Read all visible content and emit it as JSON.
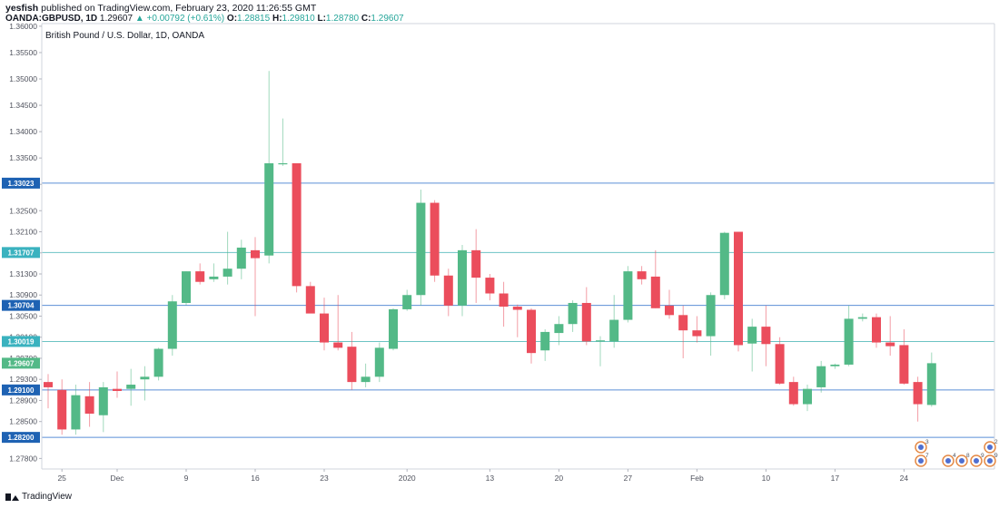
{
  "header": {
    "user": "yesfish",
    "published_text": "published on TradingView.com, February 23, 2020 11:26:55 GMT",
    "symbol": "OANDA:GBPUSD, 1D",
    "price": "1.29607",
    "change": "▲ +0.00792 (+0.61%)",
    "o_label": "O:",
    "o_value": "1.28815",
    "h_label": "H:",
    "h_value": "1.29810",
    "l_label": "L:",
    "l_value": "1.28780",
    "c_label": "C:",
    "c_value": "1.29607"
  },
  "footer": {
    "brand": "TradingView"
  },
  "colors": {
    "up": "#53b987",
    "down": "#eb4d5c",
    "hline_blue": "#5b8fd6",
    "hline_teal": "#6cc3c4",
    "tag_blue": "#2962ff",
    "tag_dark": "#1e62b3",
    "tag_teal": "#3ab2bf"
  },
  "chart_data": {
    "type": "candlestick",
    "title": "British Pound / U.S. Dollar, 1D, OANDA",
    "y_range": [
      1.276,
      1.3605
    ],
    "y_ticks": [
      "1.36000",
      "1.35500",
      "1.35000",
      "1.34500",
      "1.34000",
      "1.33500",
      "1.33000",
      "1.32500",
      "1.32100",
      "1.31700",
      "1.31300",
      "1.30900",
      "1.30500",
      "1.30100",
      "1.29700",
      "1.29300",
      "1.28900",
      "1.28500",
      "1.27800"
    ],
    "x_labels": [
      {
        "i": 1,
        "label": "25"
      },
      {
        "i": 5,
        "label": "Dec"
      },
      {
        "i": 10,
        "label": "9"
      },
      {
        "i": 15,
        "label": "16"
      },
      {
        "i": 20,
        "label": "23"
      },
      {
        "i": 26,
        "label": "2020"
      },
      {
        "i": 32,
        "label": "13"
      },
      {
        "i": 37,
        "label": "20"
      },
      {
        "i": 42,
        "label": "27"
      },
      {
        "i": 47,
        "label": "Feb"
      },
      {
        "i": 52,
        "label": "10"
      },
      {
        "i": 57,
        "label": "17"
      },
      {
        "i": 62,
        "label": "24"
      }
    ],
    "price_lines": [
      {
        "value": 1.33023,
        "label": "1.33023",
        "color": "blue"
      },
      {
        "value": 1.31707,
        "label": "1.31707",
        "color": "teal"
      },
      {
        "value": 1.30704,
        "label": "1.30704",
        "color": "blue"
      },
      {
        "value": 1.30019,
        "label": "1.30019",
        "color": "teal"
      },
      {
        "value": 1.291,
        "label": "1.29100",
        "color": "blue"
      },
      {
        "value": 1.282,
        "label": "1.28200",
        "color": "blue"
      }
    ],
    "last_price": {
      "value": 1.29607,
      "label": "1.29607"
    },
    "candles": [
      {
        "o": 1.2925,
        "h": 1.294,
        "l": 1.2875,
        "c": 1.2915
      },
      {
        "o": 1.291,
        "h": 1.293,
        "l": 1.2825,
        "c": 1.2835
      },
      {
        "o": 1.2835,
        "h": 1.292,
        "l": 1.2825,
        "c": 1.29
      },
      {
        "o": 1.2898,
        "h": 1.2925,
        "l": 1.284,
        "c": 1.2865
      },
      {
        "o": 1.2862,
        "h": 1.2925,
        "l": 1.283,
        "c": 1.2915
      },
      {
        "o": 1.2912,
        "h": 1.2945,
        "l": 1.2895,
        "c": 1.2908
      },
      {
        "o": 1.2912,
        "h": 1.295,
        "l": 1.288,
        "c": 1.292
      },
      {
        "o": 1.293,
        "h": 1.2955,
        "l": 1.289,
        "c": 1.2935
      },
      {
        "o": 1.2935,
        "h": 1.299,
        "l": 1.2928,
        "c": 1.2988
      },
      {
        "o": 1.2988,
        "h": 1.309,
        "l": 1.2975,
        "c": 1.3078
      },
      {
        "o": 1.3075,
        "h": 1.3135,
        "l": 1.307,
        "c": 1.3135
      },
      {
        "o": 1.3135,
        "h": 1.315,
        "l": 1.311,
        "c": 1.3115
      },
      {
        "o": 1.312,
        "h": 1.315,
        "l": 1.3115,
        "c": 1.3125
      },
      {
        "o": 1.3125,
        "h": 1.321,
        "l": 1.311,
        "c": 1.314
      },
      {
        "o": 1.314,
        "h": 1.3195,
        "l": 1.312,
        "c": 1.318
      },
      {
        "o": 1.3175,
        "h": 1.32,
        "l": 1.305,
        "c": 1.316
      },
      {
        "o": 1.3165,
        "h": 1.3515,
        "l": 1.315,
        "c": 1.334
      },
      {
        "o": 1.3338,
        "h": 1.3425,
        "l": 1.3335,
        "c": 1.334
      },
      {
        "o": 1.334,
        "h": 1.334,
        "l": 1.3095,
        "c": 1.3107
      },
      {
        "o": 1.3107,
        "h": 1.3115,
        "l": 1.306,
        "c": 1.3055
      },
      {
        "o": 1.3055,
        "h": 1.3085,
        "l": 1.2985,
        "c": 1.3
      },
      {
        "o": 1.3,
        "h": 1.309,
        "l": 1.2985,
        "c": 1.299
      },
      {
        "o": 1.2992,
        "h": 1.302,
        "l": 1.291,
        "c": 1.2925
      },
      {
        "o": 1.2925,
        "h": 1.296,
        "l": 1.2915,
        "c": 1.2935
      },
      {
        "o": 1.2935,
        "h": 1.3,
        "l": 1.2925,
        "c": 1.299
      },
      {
        "o": 1.2988,
        "h": 1.3065,
        "l": 1.2985,
        "c": 1.3063
      },
      {
        "o": 1.3063,
        "h": 1.31,
        "l": 1.306,
        "c": 1.309
      },
      {
        "o": 1.309,
        "h": 1.329,
        "l": 1.307,
        "c": 1.3265
      },
      {
        "o": 1.3265,
        "h": 1.327,
        "l": 1.3115,
        "c": 1.3127
      },
      {
        "o": 1.3127,
        "h": 1.314,
        "l": 1.305,
        "c": 1.307
      },
      {
        "o": 1.307,
        "h": 1.3185,
        "l": 1.305,
        "c": 1.3175
      },
      {
        "o": 1.3175,
        "h": 1.3215,
        "l": 1.3075,
        "c": 1.3123
      },
      {
        "o": 1.3123,
        "h": 1.313,
        "l": 1.308,
        "c": 1.3093
      },
      {
        "o": 1.3093,
        "h": 1.3115,
        "l": 1.303,
        "c": 1.3068
      },
      {
        "o": 1.3068,
        "h": 1.3072,
        "l": 1.301,
        "c": 1.3062
      },
      {
        "o": 1.3062,
        "h": 1.3065,
        "l": 1.296,
        "c": 1.298
      },
      {
        "o": 1.2985,
        "h": 1.3025,
        "l": 1.2965,
        "c": 1.302
      },
      {
        "o": 1.3018,
        "h": 1.305,
        "l": 1.2995,
        "c": 1.3035
      },
      {
        "o": 1.3035,
        "h": 1.308,
        "l": 1.302,
        "c": 1.3075
      },
      {
        "o": 1.3075,
        "h": 1.3105,
        "l": 1.2995,
        "c": 1.3002
      },
      {
        "o": 1.3002,
        "h": 1.3012,
        "l": 1.2955,
        "c": 1.3004
      },
      {
        "o": 1.3002,
        "h": 1.309,
        "l": 1.299,
        "c": 1.3043
      },
      {
        "o": 1.3043,
        "h": 1.3145,
        "l": 1.3038,
        "c": 1.3135
      },
      {
        "o": 1.3135,
        "h": 1.3145,
        "l": 1.311,
        "c": 1.312
      },
      {
        "o": 1.3125,
        "h": 1.3175,
        "l": 1.3065,
        "c": 1.3065
      },
      {
        "o": 1.307,
        "h": 1.31,
        "l": 1.3045,
        "c": 1.3052
      },
      {
        "o": 1.3052,
        "h": 1.307,
        "l": 1.297,
        "c": 1.3023
      },
      {
        "o": 1.3023,
        "h": 1.305,
        "l": 1.3,
        "c": 1.3012
      },
      {
        "o": 1.3012,
        "h": 1.3095,
        "l": 1.2975,
        "c": 1.309
      },
      {
        "o": 1.309,
        "h": 1.321,
        "l": 1.3082,
        "c": 1.3208
      },
      {
        "o": 1.321,
        "h": 1.321,
        "l": 1.2983,
        "c": 1.2995
      },
      {
        "o": 1.2998,
        "h": 1.3045,
        "l": 1.2945,
        "c": 1.303
      },
      {
        "o": 1.303,
        "h": 1.307,
        "l": 1.2955,
        "c": 1.2997
      },
      {
        "o": 1.2997,
        "h": 1.301,
        "l": 1.292,
        "c": 1.2922
      },
      {
        "o": 1.2925,
        "h": 1.2935,
        "l": 1.288,
        "c": 1.2883
      },
      {
        "o": 1.2883,
        "h": 1.292,
        "l": 1.287,
        "c": 1.2912
      },
      {
        "o": 1.2915,
        "h": 1.2965,
        "l": 1.2905,
        "c": 1.2955
      },
      {
        "o": 1.2955,
        "h": 1.296,
        "l": 1.295,
        "c": 1.2958
      },
      {
        "o": 1.2958,
        "h": 1.307,
        "l": 1.2955,
        "c": 1.3045
      },
      {
        "o": 1.3045,
        "h": 1.3055,
        "l": 1.304,
        "c": 1.3048
      },
      {
        "o": 1.3048,
        "h": 1.3055,
        "l": 1.299,
        "c": 1.3
      },
      {
        "o": 1.3,
        "h": 1.305,
        "l": 1.2975,
        "c": 1.2993
      },
      {
        "o": 1.2995,
        "h": 1.3025,
        "l": 1.292,
        "c": 1.2922
      },
      {
        "o": 1.2925,
        "h": 1.2935,
        "l": 1.285,
        "c": 1.2883
      },
      {
        "o": 1.28815,
        "h": 1.2981,
        "l": 1.2878,
        "c": 1.29607
      }
    ],
    "event_markers": {
      "flag_counts_top": [
        "3",
        "2"
      ],
      "flag_counts_bottom": [
        "7",
        "4",
        "8",
        "9",
        "9"
      ]
    }
  }
}
